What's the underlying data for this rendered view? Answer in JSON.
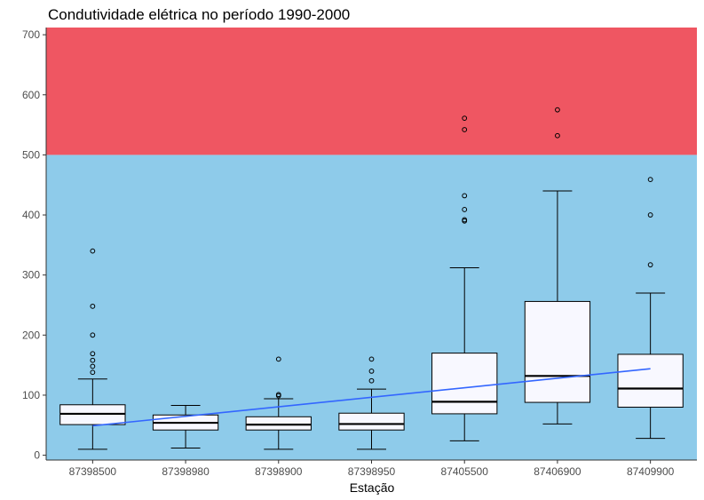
{
  "chart_data": {
    "type": "boxplot",
    "title": "Condutividade elétrica no período 1990-2000",
    "xlabel": "Estação",
    "ylabel": "",
    "ylim": [
      -8,
      712
    ],
    "yticks": [
      0,
      100,
      200,
      300,
      400,
      500,
      600,
      700
    ],
    "categories": [
      "87398500",
      "87398980",
      "87398900",
      "87398950",
      "87405500",
      "87406900",
      "87409900"
    ],
    "boxes": [
      {
        "station": "87398500",
        "whisker_low": 10,
        "q1": 51,
        "median": 69,
        "q3": 84,
        "whisker_high": 127,
        "outliers": [
          138,
          148,
          158,
          169,
          200,
          248,
          340
        ]
      },
      {
        "station": "87398980",
        "whisker_low": 12,
        "q1": 42,
        "median": 54,
        "q3": 67,
        "whisker_high": 83,
        "outliers": []
      },
      {
        "station": "87398900",
        "whisker_low": 10,
        "q1": 42,
        "median": 51,
        "q3": 64,
        "whisker_high": 94,
        "outliers": [
          99,
          101,
          160
        ]
      },
      {
        "station": "87398950",
        "whisker_low": 10,
        "q1": 42,
        "median": 52,
        "q3": 70,
        "whisker_high": 110,
        "outliers": [
          124,
          140,
          160
        ]
      },
      {
        "station": "87405500",
        "whisker_low": 24,
        "q1": 69,
        "median": 89,
        "q3": 170,
        "whisker_high": 312,
        "outliers": [
          390,
          392,
          409,
          432,
          542,
          561
        ]
      },
      {
        "station": "87406900",
        "whisker_low": 52,
        "q1": 88,
        "median": 132,
        "q3": 256,
        "whisker_high": 440,
        "outliers": [
          532,
          575
        ]
      },
      {
        "station": "87409900",
        "whisker_low": 28,
        "q1": 80,
        "median": 111,
        "q3": 168,
        "whisker_high": 270,
        "outliers": [
          317,
          400,
          459
        ]
      }
    ],
    "trend_line": {
      "from": {
        "station": "87398500",
        "y": 49
      },
      "to": {
        "station": "87409900",
        "y": 144
      },
      "color": "#3366ff"
    },
    "bands": [
      {
        "from": -8,
        "to": 500,
        "color": "#8ecbea"
      },
      {
        "from": 500,
        "to": 712,
        "color": "#ef5662"
      }
    ],
    "box_fill": "#f8f8ff",
    "grid": false,
    "legend": "none"
  }
}
